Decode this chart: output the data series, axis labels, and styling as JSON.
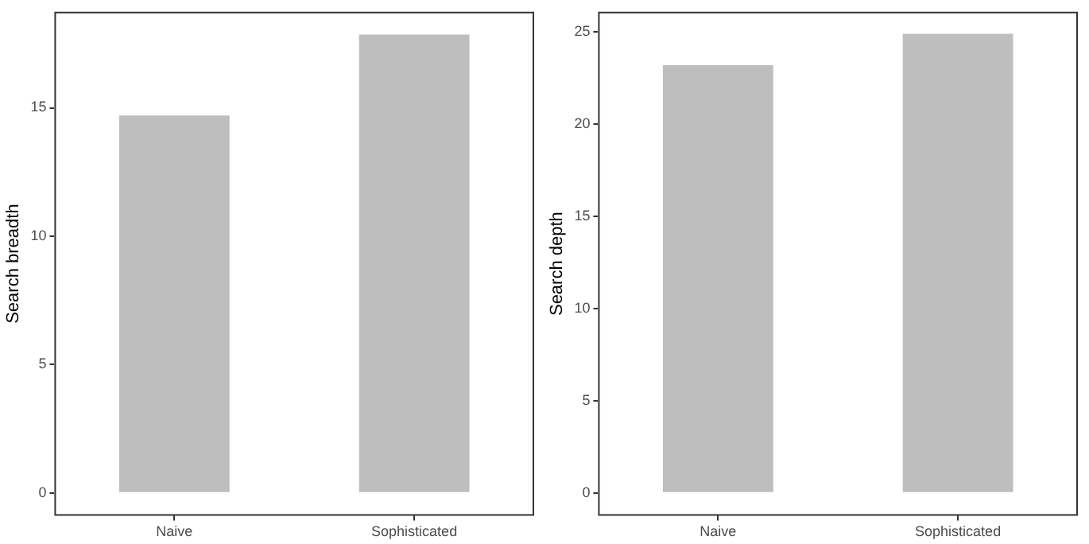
{
  "chart_data": [
    {
      "type": "bar",
      "ylabel": "Search breadth",
      "categories": [
        "Naive",
        "Sophisticated"
      ],
      "values": [
        14.7,
        17.85
      ],
      "color": "#bebebe",
      "ylim": [
        -0.89,
        18.74
      ],
      "yticks": [
        0,
        5,
        10,
        15
      ]
    },
    {
      "type": "bar",
      "ylabel": "Search depth",
      "categories": [
        "Naive",
        "Sophisticated"
      ],
      "values": [
        23.2,
        24.9
      ],
      "color": "#bebebe",
      "ylim": [
        -1.24,
        26.1
      ],
      "yticks": [
        0,
        5,
        10,
        15,
        20,
        25
      ]
    }
  ]
}
